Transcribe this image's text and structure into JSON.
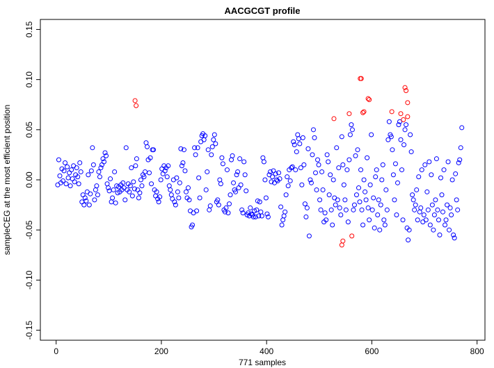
{
  "chart_data": {
    "type": "scatter",
    "title": "AACGCGT profile",
    "x_label": "771 samples",
    "y_label": "sampleCEG at the most efficient position",
    "xlim": [
      -30,
      815
    ],
    "ylim": [
      -0.16,
      0.16
    ],
    "xticks": [
      0,
      200,
      400,
      600,
      800
    ],
    "yticks": [
      -0.15,
      {
        "value": -0.1,
        "label": "-0.10"
      },
      -0.05,
      {
        "value": 0,
        "label": "0.00"
      },
      0.05,
      {
        "value": 0.1,
        "label": "0.10"
      },
      0.15
    ],
    "series": [
      {
        "color": "#0000ff",
        "x": [
          3,
          5,
          7,
          9,
          11,
          13,
          15,
          17,
          19,
          21,
          23,
          25,
          27,
          29,
          31,
          33,
          35,
          37,
          39,
          41,
          43,
          45,
          47,
          49,
          51,
          53,
          55,
          57,
          59,
          61,
          63,
          65,
          67,
          69,
          71,
          73,
          75,
          77,
          79,
          81,
          83,
          85,
          87,
          89,
          91,
          93,
          95,
          97,
          99,
          101,
          103,
          105,
          107,
          109,
          111,
          113,
          115,
          117,
          119,
          121,
          123,
          125,
          127,
          129,
          131,
          133,
          135,
          137,
          139,
          141,
          143,
          145,
          147,
          149,
          151,
          153,
          155,
          157,
          159,
          161,
          163,
          165,
          167,
          169,
          171,
          173,
          175,
          177,
          179,
          181,
          183,
          185,
          187,
          189,
          191,
          193,
          195,
          197,
          199,
          201,
          203,
          205,
          207,
          209,
          211,
          213,
          215,
          217,
          219,
          221,
          223,
          225,
          227,
          229,
          231,
          233,
          235,
          237,
          239,
          241,
          243,
          245,
          247,
          249,
          251,
          253,
          255,
          257,
          259,
          261,
          263,
          265,
          267,
          269,
          271,
          273,
          275,
          277,
          279,
          281,
          283,
          285,
          287,
          289,
          291,
          293,
          295,
          297,
          299,
          301,
          303,
          305,
          307,
          309,
          311,
          313,
          315,
          317,
          319,
          321,
          323,
          325,
          327,
          329,
          331,
          333,
          335,
          337,
          339,
          341,
          343,
          345,
          347,
          349,
          351,
          353,
          355,
          357,
          359,
          361,
          363,
          365,
          367,
          369,
          371,
          373,
          375,
          377,
          379,
          381,
          383,
          385,
          387,
          389,
          391,
          393,
          395,
          397,
          399,
          401,
          403,
          405,
          407,
          409,
          411,
          413,
          415,
          417,
          419,
          421,
          423,
          425,
          427,
          429,
          431,
          433,
          435,
          437,
          439,
          441,
          443,
          445,
          447,
          449,
          451,
          453,
          455,
          457,
          459,
          461,
          463,
          465,
          467,
          469,
          471,
          473,
          475,
          477,
          479,
          481,
          483,
          485,
          487,
          489,
          491,
          493,
          495,
          497,
          499,
          501,
          503,
          505,
          507,
          509,
          511,
          513,
          515,
          517,
          519,
          521,
          523,
          525,
          527,
          529,
          531,
          533,
          535,
          537,
          539,
          541,
          543,
          545,
          547,
          549,
          551,
          553,
          555,
          557,
          559,
          561,
          563,
          565,
          567,
          569,
          571,
          573,
          575,
          577,
          579,
          581,
          583,
          585,
          587,
          589,
          591,
          593,
          595,
          597,
          599,
          601,
          603,
          605,
          607,
          609,
          611,
          613,
          615,
          617,
          619,
          621,
          623,
          625,
          627,
          629,
          631,
          633,
          635,
          637,
          639,
          641,
          643,
          645,
          647,
          649,
          651,
          653,
          655,
          657,
          659,
          661,
          663,
          665,
          667,
          669,
          671,
          673,
          675,
          677,
          679,
          681,
          683,
          685,
          687,
          689,
          691,
          693,
          695,
          697,
          699,
          701,
          703,
          705,
          707,
          709,
          711,
          713,
          715,
          717,
          719,
          721,
          723,
          725,
          727,
          729,
          731,
          733,
          735,
          737,
          739,
          741,
          743,
          745,
          747,
          749,
          751,
          753,
          755,
          757,
          759,
          761,
          763,
          765,
          767,
          769,
          771
        ],
        "values": [
          -0.005,
          0.02,
          0.004,
          -0.003,
          0.011,
          -0.001,
          0.009,
          0.017,
          -0.004,
          0.013,
          0.002,
          0.007,
          -0.006,
          0.01,
          0.001,
          0.014,
          -0.002,
          0.005,
          0.012,
          0.003,
          -0.004,
          0.017,
          0.008,
          -0.022,
          -0.015,
          -0.025,
          -0.018,
          -0.021,
          -0.012,
          0.005,
          -0.025,
          -0.014,
          0.009,
          0.032,
          0.015,
          -0.02,
          -0.01,
          -0.006,
          -0.015,
          0.008,
          0.003,
          0.012,
          0.015,
          0.021,
          0.018,
          0.027,
          0.024,
          -0.004,
          -0.008,
          -0.011,
          0.001,
          -0.022,
          -0.018,
          -0.01,
          0.008,
          -0.023,
          -0.006,
          -0.013,
          -0.007,
          -0.012,
          -0.005,
          -0.01,
          -0.003,
          -0.008,
          -0.02,
          0.032,
          -0.01,
          -0.004,
          -0.012,
          -0.006,
          0.012,
          -0.016,
          -0.002,
          -0.009,
          0.014,
          0.021,
          -0.01,
          -0.018,
          -0.013,
          0.0,
          -0.006,
          0.005,
          0.003,
          0.008,
          0.037,
          0.033,
          0.02,
          0.007,
          0.022,
          -0.004,
          0.03,
          0.03,
          -0.01,
          -0.016,
          -0.012,
          -0.019,
          -0.022,
          -0.017,
          0.0,
          0.011,
          0.006,
          0.014,
          0.009,
          0.012,
          0.003,
          0.014,
          -0.006,
          -0.01,
          -0.015,
          -0.019,
          0.0,
          -0.022,
          -0.025,
          0.002,
          -0.012,
          -0.018,
          -0.003,
          0.031,
          0.014,
          0.017,
          0.03,
          0.009,
          -0.012,
          -0.018,
          -0.008,
          -0.02,
          -0.031,
          -0.047,
          -0.045,
          -0.033,
          0.032,
          0.025,
          -0.031,
          0.032,
          0.002,
          -0.018,
          0.038,
          0.044,
          0.046,
          0.04,
          0.044,
          -0.01,
          0.008,
          0.03,
          -0.03,
          -0.026,
          0.025,
          0.033,
          0.04,
          0.045,
          0.036,
          -0.022,
          -0.02,
          -0.025,
          0.0,
          -0.004,
          0.022,
          0.016,
          -0.03,
          -0.032,
          -0.028,
          0.01,
          -0.033,
          -0.024,
          -0.015,
          0.02,
          0.024,
          -0.003,
          -0.01,
          -0.012,
          0.005,
          0.008,
          -0.008,
          0.021,
          -0.005,
          -0.03,
          -0.033,
          0.018,
          0.005,
          -0.011,
          -0.035,
          -0.033,
          -0.036,
          -0.028,
          -0.034,
          -0.035,
          -0.037,
          -0.031,
          -0.037,
          -0.03,
          -0.021,
          -0.036,
          -0.022,
          -0.032,
          -0.036,
          0.022,
          0.018,
          0.0,
          -0.018,
          -0.034,
          -0.037,
          0.005,
          0.008,
          -0.002,
          0.003,
          0.009,
          -0.003,
          0.006,
          0.0,
          -0.001,
          0.007,
          0.001,
          -0.027,
          -0.045,
          -0.04,
          -0.036,
          -0.032,
          -0.015,
          0.003,
          -0.006,
          0.01,
          -0.001,
          0.012,
          0.013,
          0.038,
          0.035,
          0.01,
          0.028,
          0.045,
          0.041,
          0.036,
          0.012,
          -0.005,
          0.042,
          0.015,
          -0.024,
          -0.037,
          -0.028,
          0.031,
          -0.056,
          0.0,
          -0.003,
          0.025,
          0.05,
          0.042,
          0.007,
          -0.01,
          0.02,
          0.015,
          -0.02,
          -0.03,
          0.008,
          -0.01,
          -0.042,
          -0.033,
          -0.04,
          0.025,
          0.018,
          -0.015,
          0.005,
          -0.03,
          -0.045,
          0.0,
          -0.018,
          -0.025,
          0.032,
          -0.02,
          0.012,
          -0.028,
          -0.035,
          0.043,
          0.015,
          -0.005,
          -0.02,
          -0.03,
          0.01,
          -0.042,
          0.02,
          0.045,
          0.055,
          0.05,
          -0.03,
          -0.025,
          0.024,
          -0.015,
          0.03,
          -0.008,
          -0.022,
          0.01,
          -0.03,
          -0.045,
          0.0,
          -0.012,
          -0.02,
          0.022,
          -0.028,
          -0.04,
          -0.005,
          0.045,
          -0.03,
          -0.018,
          -0.048,
          0.003,
          0.01,
          -0.035,
          -0.02,
          -0.05,
          -0.025,
          0.0,
          0.015,
          -0.04,
          -0.045,
          -0.01,
          -0.03,
          0.04,
          0.058,
          0.045,
          0.043,
          0.03,
          0.005,
          -0.02,
          0.016,
          -0.035,
          -0.003,
          0.055,
          0.058,
          0.04,
          0.01,
          -0.04,
          0.035,
          0.05,
          0.055,
          -0.048,
          -0.06,
          -0.05,
          0.045,
          0.028,
          -0.015,
          -0.02,
          -0.03,
          -0.025,
          -0.01,
          -0.04,
          0.003,
          -0.032,
          -0.028,
          0.01,
          -0.042,
          -0.035,
          0.015,
          -0.04,
          -0.012,
          -0.03,
          0.018,
          -0.045,
          0.005,
          -0.025,
          -0.05,
          -0.035,
          -0.02,
          0.021,
          -0.03,
          -0.04,
          -0.055,
          0.002,
          -0.015,
          -0.032,
          0.01,
          -0.045,
          -0.04,
          -0.025,
          0.018,
          -0.05,
          -0.028,
          -0.035,
          0.0,
          -0.055,
          -0.058,
          0.006,
          -0.02,
          -0.03,
          0.017,
          0.02,
          0.032,
          0.052
        ]
      },
      {
        "color": "#ff0000",
        "x": [
          150,
          152,
          528,
          543,
          545,
          557,
          562,
          578,
          580,
          583,
          585,
          593,
          595,
          638,
          655,
          660,
          663,
          665,
          668,
          668
        ],
        "values": [
          0.079,
          0.074,
          0.061,
          -0.065,
          -0.061,
          0.066,
          -0.056,
          0.101,
          0.101,
          0.067,
          0.068,
          0.081,
          0.08,
          0.068,
          0.066,
          0.06,
          0.092,
          0.089,
          0.077,
          0.063
        ]
      }
    ]
  }
}
